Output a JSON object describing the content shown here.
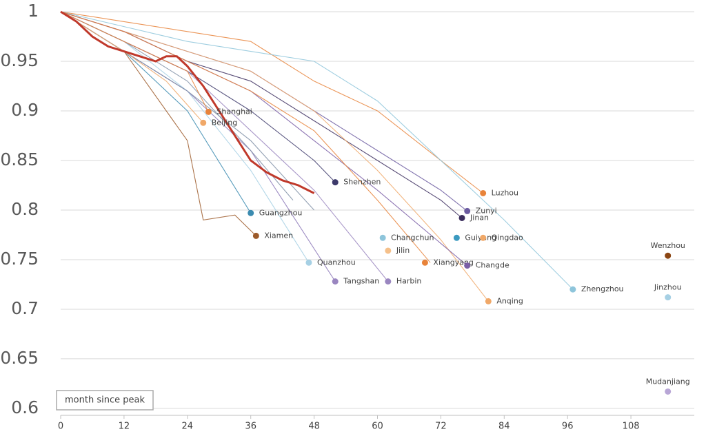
{
  "chart_data": {
    "type": "line",
    "x_label": "month since peak",
    "xlim": [
      0,
      120
    ],
    "ylim": [
      0.593,
      1
    ],
    "xticks": [
      0,
      12,
      24,
      36,
      48,
      60,
      72,
      84,
      96,
      108
    ],
    "yticks": [
      0.6,
      0.65,
      0.7,
      0.75,
      0.8,
      0.85,
      0.9,
      0.95,
      1
    ],
    "grid": true,
    "lines": [
      {
        "color": "#e8833a",
        "x": [
          0,
          12,
          24,
          36,
          48,
          60,
          72,
          80
        ],
        "values": [
          1,
          0.99,
          0.98,
          0.97,
          0.93,
          0.9,
          0.85,
          0.817
        ]
      },
      {
        "color": "#8ec5db",
        "x": [
          0,
          12,
          24,
          36,
          48,
          60,
          72,
          84,
          97
        ],
        "values": [
          1,
          0.985,
          0.97,
          0.96,
          0.95,
          0.91,
          0.85,
          0.79,
          0.72
        ]
      },
      {
        "color": "#6b5aa0",
        "x": [
          0,
          12,
          24,
          36,
          48,
          60,
          72,
          77
        ],
        "values": [
          1,
          0.98,
          0.96,
          0.94,
          0.9,
          0.86,
          0.82,
          0.799
        ]
      },
      {
        "color": "#3b2d5e",
        "x": [
          0,
          12,
          24,
          36,
          48,
          60,
          72,
          76
        ],
        "values": [
          1,
          0.98,
          0.95,
          0.93,
          0.89,
          0.85,
          0.81,
          0.792
        ]
      },
      {
        "color": "#f0a868",
        "x": [
          0,
          12,
          24,
          36,
          48,
          60,
          72,
          81
        ],
        "values": [
          1,
          0.98,
          0.96,
          0.94,
          0.9,
          0.84,
          0.77,
          0.708
        ]
      },
      {
        "color": "#7a5ea6",
        "x": [
          0,
          12,
          24,
          36,
          48,
          60,
          77
        ],
        "values": [
          1,
          0.98,
          0.95,
          0.92,
          0.87,
          0.82,
          0.744
        ]
      },
      {
        "color": "#3d3a6b",
        "x": [
          0,
          12,
          24,
          36,
          48,
          52
        ],
        "values": [
          1,
          0.97,
          0.94,
          0.9,
          0.85,
          0.828
        ]
      },
      {
        "color": "#3b8bb0",
        "x": [
          0,
          12,
          24,
          36
        ],
        "values": [
          1,
          0.96,
          0.9,
          0.797
        ]
      },
      {
        "color": "#9c5a2a",
        "x": [
          0,
          12,
          24,
          27,
          33,
          37
        ],
        "values": [
          1,
          0.96,
          0.87,
          0.79,
          0.795,
          0.774
        ]
      },
      {
        "color": "#a6d0e4",
        "x": [
          0,
          12,
          24,
          36,
          47
        ],
        "values": [
          1,
          0.97,
          0.92,
          0.84,
          0.747
        ]
      },
      {
        "color": "#9a86c0",
        "x": [
          0,
          12,
          24,
          36,
          48,
          62
        ],
        "values": [
          1,
          0.97,
          0.94,
          0.88,
          0.82,
          0.728
        ]
      },
      {
        "color": "#8c78b8",
        "x": [
          0,
          12,
          24,
          36,
          52
        ],
        "values": [
          1,
          0.96,
          0.92,
          0.86,
          0.728
        ]
      },
      {
        "color": "#e8833a",
        "x": [
          0,
          12,
          24,
          36,
          48,
          60,
          70
        ],
        "values": [
          1,
          0.98,
          0.95,
          0.92,
          0.88,
          0.81,
          0.747
        ]
      },
      {
        "color": "#7f8fa6",
        "x": [
          0,
          12,
          24,
          36,
          48
        ],
        "values": [
          1,
          0.96,
          0.92,
          0.87,
          0.8
        ]
      },
      {
        "color": "#7f8fa6",
        "x": [
          0,
          12,
          24,
          36,
          44
        ],
        "values": [
          1,
          0.97,
          0.93,
          0.86,
          0.81
        ]
      },
      {
        "color": "#e8833a",
        "x": [
          0,
          12,
          24,
          28
        ],
        "values": [
          1,
          0.97,
          0.94,
          0.899
        ]
      },
      {
        "color": "#f0a868",
        "x": [
          0,
          12,
          20,
          27
        ],
        "values": [
          1,
          0.96,
          0.93,
          0.888
        ]
      },
      {
        "color": "#c0392b",
        "width": 3,
        "x": [
          0,
          3,
          6,
          9,
          12,
          15,
          18,
          20,
          22,
          24,
          27,
          30,
          33,
          36,
          39,
          42,
          45,
          48
        ],
        "values": [
          1,
          0.99,
          0.975,
          0.965,
          0.96,
          0.955,
          0.95,
          0.955,
          0.955,
          0.945,
          0.925,
          0.9,
          0.875,
          0.85,
          0.838,
          0.83,
          0.825,
          0.817
        ]
      }
    ],
    "points": [
      {
        "label": "Shanghai",
        "color": "#e8833a",
        "x": 28,
        "y": 0.899
      },
      {
        "label": "Beijing",
        "color": "#f0a868",
        "x": 27,
        "y": 0.888
      },
      {
        "label": "Shenzhen",
        "color": "#3d3a6b",
        "x": 52,
        "y": 0.828
      },
      {
        "label": "Guangzhou",
        "color": "#3b8bb0",
        "x": 36,
        "y": 0.797
      },
      {
        "label": "Xiamen",
        "color": "#9c5a2a",
        "x": 37,
        "y": 0.774
      },
      {
        "label": "Quanzhou",
        "color": "#a6d0e4",
        "x": 47,
        "y": 0.747
      },
      {
        "label": "Tangshan",
        "color": "#9a86c0",
        "x": 52,
        "y": 0.728
      },
      {
        "label": "Harbin",
        "color": "#9a86c0",
        "x": 62,
        "y": 0.728
      },
      {
        "label": "Changchun",
        "color": "#8ec5db",
        "x": 61,
        "y": 0.772
      },
      {
        "label": "Jilin",
        "color": "#f5c08a",
        "x": 62,
        "y": 0.759
      },
      {
        "label": "Xiangyang",
        "color": "#e8833a",
        "x": 69,
        "y": 0.747
      },
      {
        "label": "Changde",
        "color": "#7a5ea6",
        "x": 77,
        "y": 0.744
      },
      {
        "label": "Guiyang",
        "color": "#3b9ac0",
        "x": 75,
        "y": 0.772
      },
      {
        "label": "Qingdao",
        "color": "#f0a868",
        "x": 80,
        "y": 0.772
      },
      {
        "label": "Zunyi",
        "color": "#6b5aa0",
        "x": 77,
        "y": 0.799
      },
      {
        "label": "Jinan",
        "color": "#3b2d5e",
        "x": 76,
        "y": 0.792
      },
      {
        "label": "Luzhou",
        "color": "#e8833a",
        "x": 80,
        "y": 0.817
      },
      {
        "label": "Anqing",
        "color": "#f0a868",
        "x": 81,
        "y": 0.708
      },
      {
        "label": "Zhengzhou",
        "color": "#8ec5db",
        "x": 97,
        "y": 0.72
      },
      {
        "label": "Wenzhou",
        "color": "#8b4513",
        "x": 115,
        "y": 0.754
      },
      {
        "label": "Jinzhou",
        "color": "#a6d0e4",
        "x": 115,
        "y": 0.712
      },
      {
        "label": "Mudanjiang",
        "color": "#b8a6d6",
        "x": 115,
        "y": 0.617
      }
    ]
  }
}
